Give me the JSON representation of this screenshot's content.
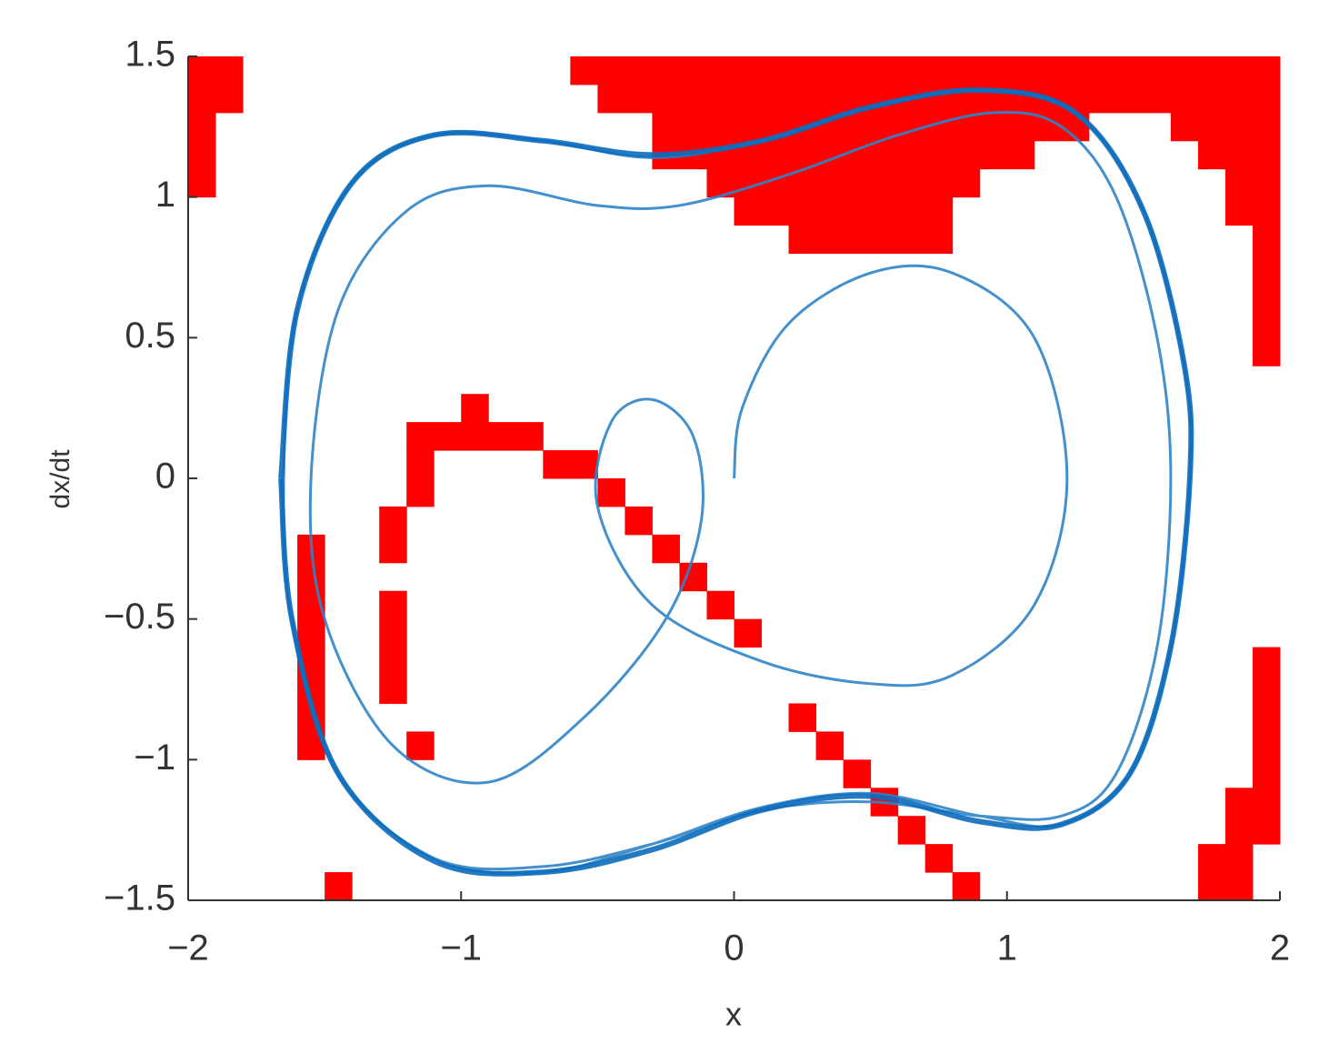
{
  "chart_data": {
    "type": "phase",
    "xlabel": "x",
    "ylabel": "dx/dt",
    "xlim": [
      -2,
      2
    ],
    "ylim": [
      -1.5,
      1.5
    ],
    "xticks": [
      {
        "value": -2,
        "label": "−2"
      },
      {
        "value": -1,
        "label": "−1"
      },
      0,
      1,
      2
    ],
    "yticks": [
      {
        "value": -1.5,
        "label": "−1.5"
      },
      {
        "value": -1,
        "label": "−1"
      },
      {
        "value": -0.5,
        "label": "−0.5"
      },
      0,
      0.5,
      1,
      1.5
    ],
    "regions": {
      "color": "#ff0000",
      "rects": [
        [
          -2,
          -1.8,
          1.3,
          1.5
        ],
        [
          -2,
          -1.9,
          1.0,
          1.3
        ],
        [
          -0.6,
          2,
          1.4,
          1.5
        ],
        [
          -0.5,
          2,
          1.3,
          1.4
        ],
        [
          -0.3,
          1.3,
          1.2,
          1.3
        ],
        [
          1.6,
          2,
          1.2,
          1.3
        ],
        [
          -0.3,
          1.1,
          1.1,
          1.2
        ],
        [
          1.7,
          2,
          1.1,
          1.2
        ],
        [
          -0.1,
          0.9,
          1.0,
          1.1
        ],
        [
          1.8,
          2,
          0.9,
          1.1
        ],
        [
          0,
          0.8,
          0.9,
          1.0
        ],
        [
          0.2,
          0.8,
          0.8,
          0.9
        ],
        [
          1.9,
          2,
          0.4,
          0.9
        ],
        [
          1.9,
          2,
          -1.3,
          -0.6
        ],
        [
          1.8,
          1.9,
          -1.3,
          -1.1
        ],
        [
          1.7,
          1.9,
          -1.5,
          -1.3
        ],
        [
          -1.6,
          -1.5,
          -1.0,
          -0.2
        ],
        [
          -1.5,
          -1.4,
          -1.5,
          -1.4
        ],
        [
          -1.3,
          -1.2,
          -0.3,
          -0.1
        ],
        [
          -1.3,
          -1.2,
          -0.8,
          -0.4
        ],
        [
          -1.2,
          -1.1,
          -1.0,
          -0.9
        ],
        [
          -1.2,
          -1.1,
          -0.1,
          0.1
        ],
        [
          -1.2,
          -0.7,
          0.1,
          0.2
        ],
        [
          -1.0,
          -0.9,
          0.2,
          0.3
        ],
        [
          -0.7,
          -0.5,
          0,
          0.1
        ],
        [
          -0.5,
          -0.4,
          -0.1,
          0
        ],
        [
          -0.4,
          -0.3,
          -0.2,
          -0.1
        ],
        [
          -0.3,
          -0.2,
          -0.3,
          -0.2
        ],
        [
          -0.2,
          -0.1,
          -0.4,
          -0.3
        ],
        [
          -0.1,
          0,
          -0.5,
          -0.4
        ],
        [
          0,
          0.1,
          -0.6,
          -0.5
        ],
        [
          0.2,
          0.3,
          -0.9,
          -0.8
        ],
        [
          0.3,
          0.4,
          -1.0,
          -0.9
        ],
        [
          0.4,
          0.5,
          -1.1,
          -1.0
        ],
        [
          0.5,
          0.6,
          -1.2,
          -1.1
        ],
        [
          0.6,
          0.7,
          -1.3,
          -1.2
        ],
        [
          0.7,
          0.8,
          -1.4,
          -1.3
        ],
        [
          0.8,
          0.9,
          -1.5,
          -1.4
        ]
      ]
    },
    "series": [
      {
        "color": "#2f84c8",
        "linewidth": 3,
        "x": [
          0,
          0.03,
          0.2,
          0.5,
          0.8,
          1.1,
          1.22,
          1.1,
          0.8,
          0.5,
          0.1,
          -0.3,
          -0.5,
          -0.45,
          -0.3,
          -0.15,
          -0.12,
          -0.25,
          -0.55,
          -0.9,
          -1.25,
          -1.5,
          -1.55,
          -1.45,
          -1.2,
          -0.9,
          -0.5,
          -0.2,
          0.2,
          0.6,
          0.95,
          1.2,
          1.4,
          1.55,
          1.6,
          1.55,
          1.4,
          1.2,
          0.9,
          0.5,
          0.1,
          -0.3,
          -0.7,
          -1.1,
          -1.45,
          -1.62,
          -1.65,
          -1.6,
          -1.4,
          -1.1,
          -0.7,
          -0.3,
          0.1,
          0.5,
          0.9,
          1.25,
          1.5,
          1.65,
          1.67,
          1.6,
          1.45,
          1.2,
          0.9,
          0.5,
          0.1,
          -0.3,
          -0.7,
          -1.1,
          -1.45,
          -1.62,
          -1.66
        ],
        "y": [
          0,
          0.25,
          0.55,
          0.73,
          0.73,
          0.5,
          0,
          -0.45,
          -0.7,
          -0.73,
          -0.65,
          -0.45,
          -0.1,
          0.2,
          0.28,
          0.15,
          -0.15,
          -0.5,
          -0.85,
          -1.08,
          -0.95,
          -0.5,
          0,
          0.6,
          0.95,
          1.04,
          0.97,
          0.97,
          1.08,
          1.22,
          1.3,
          1.25,
          1.0,
          0.5,
          0,
          -0.6,
          -1.05,
          -1.2,
          -1.2,
          -1.15,
          -1.18,
          -1.3,
          -1.38,
          -1.35,
          -1.05,
          -0.5,
          0,
          0.6,
          1.05,
          1.22,
          1.2,
          1.14,
          1.2,
          1.32,
          1.38,
          1.3,
          0.95,
          0.4,
          0,
          -0.6,
          -1.05,
          -1.23,
          -1.2,
          -1.12,
          -1.17,
          -1.3,
          -1.4,
          -1.35,
          -1.05,
          -0.5,
          0
        ]
      },
      {
        "color": "#0b6bbd",
        "linewidth": 6,
        "x": [
          -1.66,
          -1.6,
          -1.4,
          -1.1,
          -0.7,
          -0.3,
          0.1,
          0.5,
          0.9,
          1.25,
          1.5,
          1.65,
          1.67,
          1.6,
          1.45,
          1.2,
          0.9,
          0.5,
          0.1,
          -0.3,
          -0.7,
          -1.1,
          -1.45,
          -1.62,
          -1.66
        ],
        "y": [
          0,
          0.6,
          1.05,
          1.22,
          1.2,
          1.15,
          1.2,
          1.32,
          1.38,
          1.3,
          0.95,
          0.4,
          0,
          -0.6,
          -1.05,
          -1.23,
          -1.22,
          -1.13,
          -1.18,
          -1.32,
          -1.4,
          -1.36,
          -1.05,
          -0.5,
          0
        ]
      }
    ]
  }
}
